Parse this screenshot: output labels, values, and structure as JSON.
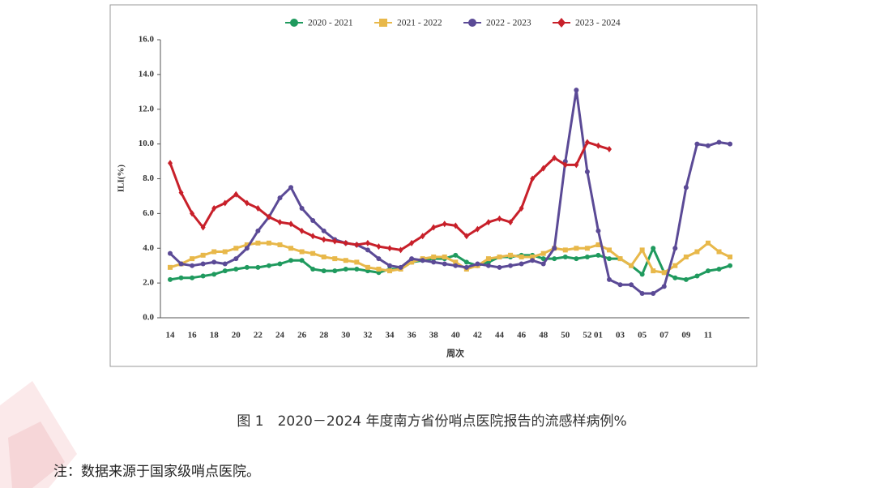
{
  "chart_data": {
    "type": "line",
    "ylabel": "ILI(%)",
    "xlabel": "周次",
    "categories": [
      "14",
      null,
      "16",
      null,
      "18",
      null,
      "20",
      null,
      "22",
      null,
      "24",
      null,
      "26",
      null,
      "28",
      null,
      "30",
      null,
      "32",
      null,
      "34",
      null,
      "36",
      null,
      "38",
      null,
      "40",
      null,
      "42",
      null,
      "44",
      null,
      "46",
      null,
      "48",
      null,
      "50",
      null,
      "52",
      "01",
      null,
      "03",
      null,
      "05",
      null,
      "07",
      null,
      "09",
      null,
      "11",
      null,
      null
    ],
    "ylim": [
      0,
      16
    ],
    "yticks": [
      {
        "value": 0,
        "label": "0.0"
      },
      {
        "value": 2,
        "label": "2.0"
      },
      {
        "value": 4,
        "label": "4.0"
      },
      {
        "value": 6,
        "label": "6.0"
      },
      {
        "value": 8,
        "label": "8.0"
      },
      {
        "value": 10,
        "label": "10.0"
      },
      {
        "value": 12,
        "label": "12.0"
      },
      {
        "value": 14,
        "label": "14.0"
      },
      {
        "value": 16,
        "label": "16.0"
      }
    ],
    "legend": "top",
    "series": [
      {
        "name": "2020 - 2021",
        "color": "#1f9a5e",
        "marker": "circle",
        "values": [
          2.2,
          2.3,
          2.3,
          2.4,
          2.5,
          2.7,
          2.8,
          2.9,
          2.9,
          3.0,
          3.1,
          3.3,
          3.3,
          2.8,
          2.7,
          2.7,
          2.8,
          2.8,
          2.7,
          2.6,
          2.8,
          2.8,
          3.2,
          3.3,
          3.4,
          3.4,
          3.6,
          3.2,
          3.0,
          3.2,
          3.5,
          3.5,
          3.6,
          3.6,
          3.4,
          3.4,
          3.5,
          3.4,
          3.5,
          3.6,
          3.4,
          3.4,
          3.0,
          2.5,
          4.0,
          2.6,
          2.3,
          2.2,
          2.4,
          2.7,
          2.8,
          3.0
        ]
      },
      {
        "name": "2021 - 2022",
        "color": "#e8b84a",
        "marker": "square",
        "values": [
          2.9,
          3.1,
          3.4,
          3.6,
          3.8,
          3.8,
          4.0,
          4.2,
          4.3,
          4.3,
          4.2,
          4.0,
          3.8,
          3.7,
          3.5,
          3.4,
          3.3,
          3.2,
          2.9,
          2.8,
          2.7,
          2.8,
          3.2,
          3.4,
          3.5,
          3.5,
          3.2,
          2.8,
          3.0,
          3.4,
          3.5,
          3.6,
          3.5,
          3.5,
          3.7,
          4.0,
          3.9,
          4.0,
          4.0,
          4.2,
          3.9,
          3.4,
          3.0,
          3.9,
          2.7,
          2.6,
          3.0,
          3.5,
          3.8,
          4.3,
          3.8,
          3.5
        ]
      },
      {
        "name": "2022 - 2023",
        "color": "#5b4a96",
        "marker": "circle",
        "values": [
          3.7,
          3.1,
          3.0,
          3.1,
          3.2,
          3.1,
          3.4,
          4.0,
          5.0,
          5.8,
          6.9,
          7.5,
          6.3,
          5.6,
          5.0,
          4.5,
          4.3,
          4.2,
          3.9,
          3.4,
          3.0,
          2.9,
          3.4,
          3.3,
          3.2,
          3.1,
          3.0,
          2.9,
          3.1,
          3.0,
          2.9,
          3.0,
          3.1,
          3.3,
          3.1,
          4.0,
          9.0,
          13.1,
          8.4,
          5.0,
          2.2,
          1.9,
          1.9,
          1.4,
          1.4,
          1.8,
          4.0,
          7.5,
          10.0,
          9.9,
          10.1,
          10.0
        ]
      },
      {
        "name": "2023 - 2024",
        "color": "#c8202a",
        "marker": "diamond",
        "values": [
          8.9,
          7.2,
          6.0,
          5.2,
          6.3,
          6.6,
          7.1,
          6.6,
          6.3,
          5.8,
          5.5,
          5.4,
          5.0,
          4.7,
          4.5,
          4.4,
          4.3,
          4.2,
          4.3,
          4.1,
          4.0,
          3.9,
          4.3,
          4.7,
          5.2,
          5.4,
          5.3,
          4.7,
          5.1,
          5.5,
          5.7,
          5.5,
          6.3,
          8.0,
          8.6,
          9.2,
          8.8,
          8.8,
          10.1,
          9.9,
          9.7,
          null,
          null,
          null,
          null,
          null,
          null,
          null,
          null,
          null,
          null,
          null
        ]
      }
    ]
  },
  "caption": "图 1　2020－2024 年度南方省份哨点医院报告的流感样病例%",
  "note": "注：数据来源于国家级哨点医院。"
}
